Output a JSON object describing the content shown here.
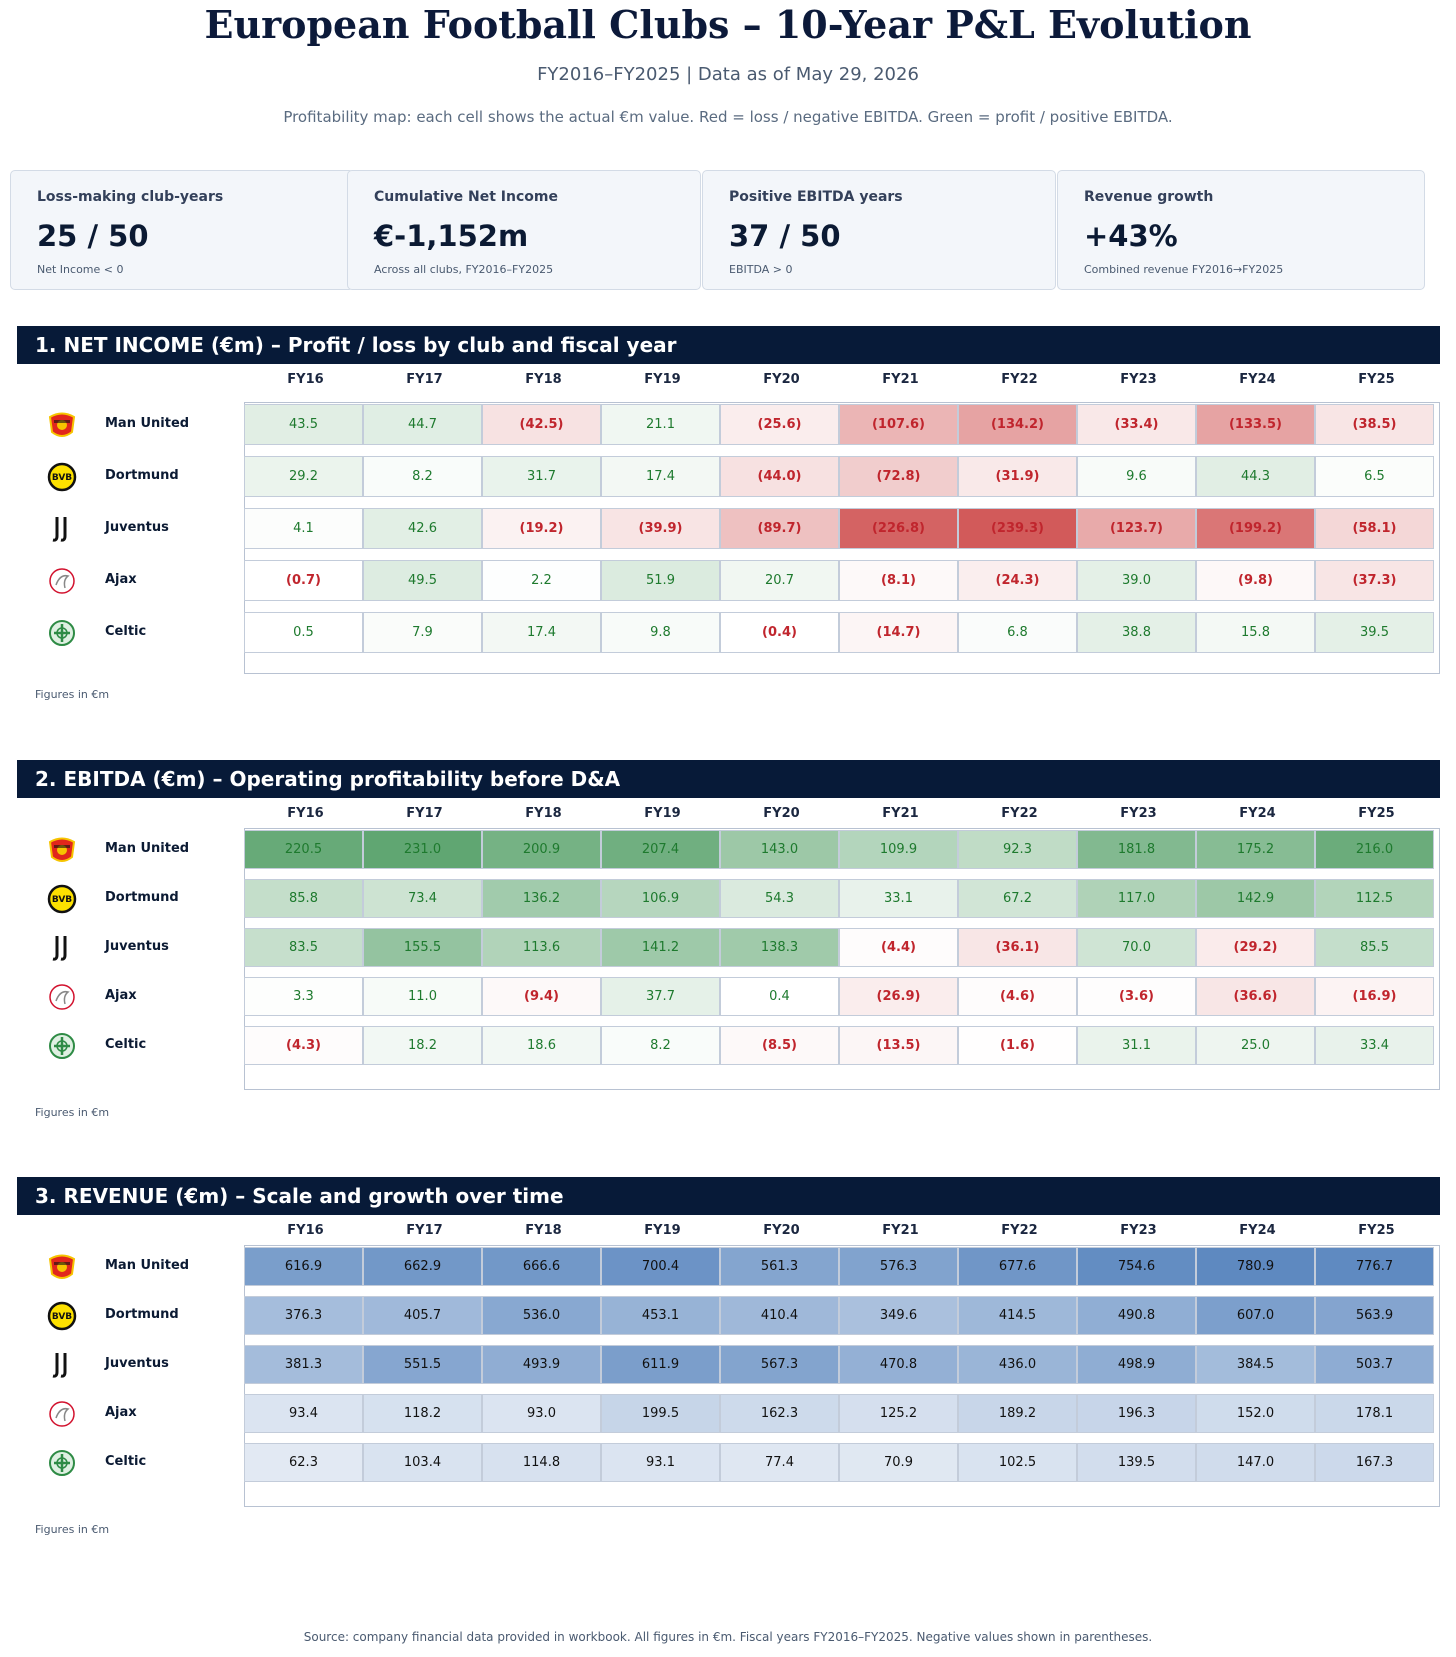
{
  "header": {
    "title": "European Football Clubs – 10-Year P&L Evolution",
    "subtitle": "FY2016–FY2025 | Data as of May 29, 2026",
    "description": "Profitability map: each cell shows the actual €m value. Red = loss / negative EBITDA. Green = profit / positive EBITDA."
  },
  "kpis": [
    {
      "label": "Loss-making club-years",
      "value": "25 / 50",
      "note": "Net Income < 0"
    },
    {
      "label": "Cumulative Net Income",
      "value": "€-1,152m",
      "note": "Across all clubs, FY2016–FY2025"
    },
    {
      "label": "Positive EBITDA years",
      "value": "37 / 50",
      "note": "EBITDA > 0"
    },
    {
      "label": "Revenue growth",
      "value": "+43%",
      "note": "Combined revenue FY2016→FY2025"
    }
  ],
  "footnote": "Figures in €m",
  "source": "Source: company financial data provided in workbook. All figures in €m. Fiscal years FY2016–FY2025. Negative values shown in parentheses.",
  "colors": {
    "header_bg": "#071a38",
    "positive": "#1e7a2e",
    "negative": "#c0252d",
    "revenue": "#5b87bf"
  },
  "chart_data": [
    {
      "type": "heatmap",
      "title": "1. NET INCOME (€m) – Profit / loss by club and fiscal year",
      "scale": "diverging",
      "columns": [
        "FY16",
        "FY17",
        "FY18",
        "FY19",
        "FY20",
        "FY21",
        "FY22",
        "FY23",
        "FY24",
        "FY25"
      ],
      "rows": [
        {
          "club": "Man United",
          "logo": "man-united-crest-icon",
          "values": [
            43.5,
            44.7,
            -42.5,
            21.1,
            -25.6,
            -107.6,
            -134.2,
            -33.4,
            -133.5,
            -38.5
          ]
        },
        {
          "club": "Dortmund",
          "logo": "dortmund-crest-icon",
          "values": [
            29.2,
            8.2,
            31.7,
            17.4,
            -44.0,
            -72.8,
            -31.9,
            9.6,
            44.3,
            6.5
          ]
        },
        {
          "club": "Juventus",
          "logo": "juventus-crest-icon",
          "values": [
            4.1,
            42.6,
            -19.2,
            -39.9,
            -89.7,
            -226.8,
            -239.3,
            -123.7,
            -199.2,
            -58.1
          ]
        },
        {
          "club": "Ajax",
          "logo": "ajax-crest-icon",
          "values": [
            -0.7,
            49.5,
            2.2,
            51.9,
            20.7,
            -8.1,
            -24.3,
            39.0,
            -9.8,
            -37.3
          ]
        },
        {
          "club": "Celtic",
          "logo": "celtic-crest-icon",
          "values": [
            0.5,
            7.9,
            17.4,
            9.8,
            -0.4,
            -14.7,
            6.8,
            38.8,
            15.8,
            39.5
          ]
        }
      ]
    },
    {
      "type": "heatmap",
      "title": "2. EBITDA (€m) – Operating profitability before D&A",
      "scale": "diverging",
      "columns": [
        "FY16",
        "FY17",
        "FY18",
        "FY19",
        "FY20",
        "FY21",
        "FY22",
        "FY23",
        "FY24",
        "FY25"
      ],
      "rows": [
        {
          "club": "Man United",
          "logo": "man-united-crest-icon",
          "values": [
            220.5,
            231.0,
            200.9,
            207.4,
            143.0,
            109.9,
            92.3,
            181.8,
            175.2,
            216.0
          ]
        },
        {
          "club": "Dortmund",
          "logo": "dortmund-crest-icon",
          "values": [
            85.8,
            73.4,
            136.2,
            106.9,
            54.3,
            33.1,
            67.2,
            117.0,
            142.9,
            112.5
          ]
        },
        {
          "club": "Juventus",
          "logo": "juventus-crest-icon",
          "values": [
            83.5,
            155.5,
            113.6,
            141.2,
            138.3,
            -4.4,
            -36.1,
            70.0,
            -29.2,
            85.5
          ]
        },
        {
          "club": "Ajax",
          "logo": "ajax-crest-icon",
          "values": [
            3.3,
            11.0,
            -9.4,
            37.7,
            0.4,
            -26.9,
            -4.6,
            -3.6,
            -36.6,
            -16.9
          ]
        },
        {
          "club": "Celtic",
          "logo": "celtic-crest-icon",
          "values": [
            -4.3,
            18.2,
            18.6,
            8.2,
            -8.5,
            -13.5,
            -1.6,
            31.1,
            25.0,
            33.4
          ]
        }
      ]
    },
    {
      "type": "heatmap",
      "title": "3. REVENUE (€m) – Scale and growth over time",
      "scale": "sequential",
      "columns": [
        "FY16",
        "FY17",
        "FY18",
        "FY19",
        "FY20",
        "FY21",
        "FY22",
        "FY23",
        "FY24",
        "FY25"
      ],
      "rows": [
        {
          "club": "Man United",
          "logo": "man-united-crest-icon",
          "values": [
            616.9,
            662.9,
            666.6,
            700.4,
            561.3,
            576.3,
            677.6,
            754.6,
            780.9,
            776.7
          ]
        },
        {
          "club": "Dortmund",
          "logo": "dortmund-crest-icon",
          "values": [
            376.3,
            405.7,
            536.0,
            453.1,
            410.4,
            349.6,
            414.5,
            490.8,
            607.0,
            563.9
          ]
        },
        {
          "club": "Juventus",
          "logo": "juventus-crest-icon",
          "values": [
            381.3,
            551.5,
            493.9,
            611.9,
            567.3,
            470.8,
            436.0,
            498.9,
            384.5,
            503.7
          ]
        },
        {
          "club": "Ajax",
          "logo": "ajax-crest-icon",
          "values": [
            93.4,
            118.2,
            93.0,
            199.5,
            162.3,
            125.2,
            189.2,
            196.3,
            152.0,
            178.1
          ]
        },
        {
          "club": "Celtic",
          "logo": "celtic-crest-icon",
          "values": [
            62.3,
            103.4,
            114.8,
            93.1,
            77.4,
            70.9,
            102.5,
            139.5,
            147.0,
            167.3
          ]
        }
      ]
    }
  ]
}
